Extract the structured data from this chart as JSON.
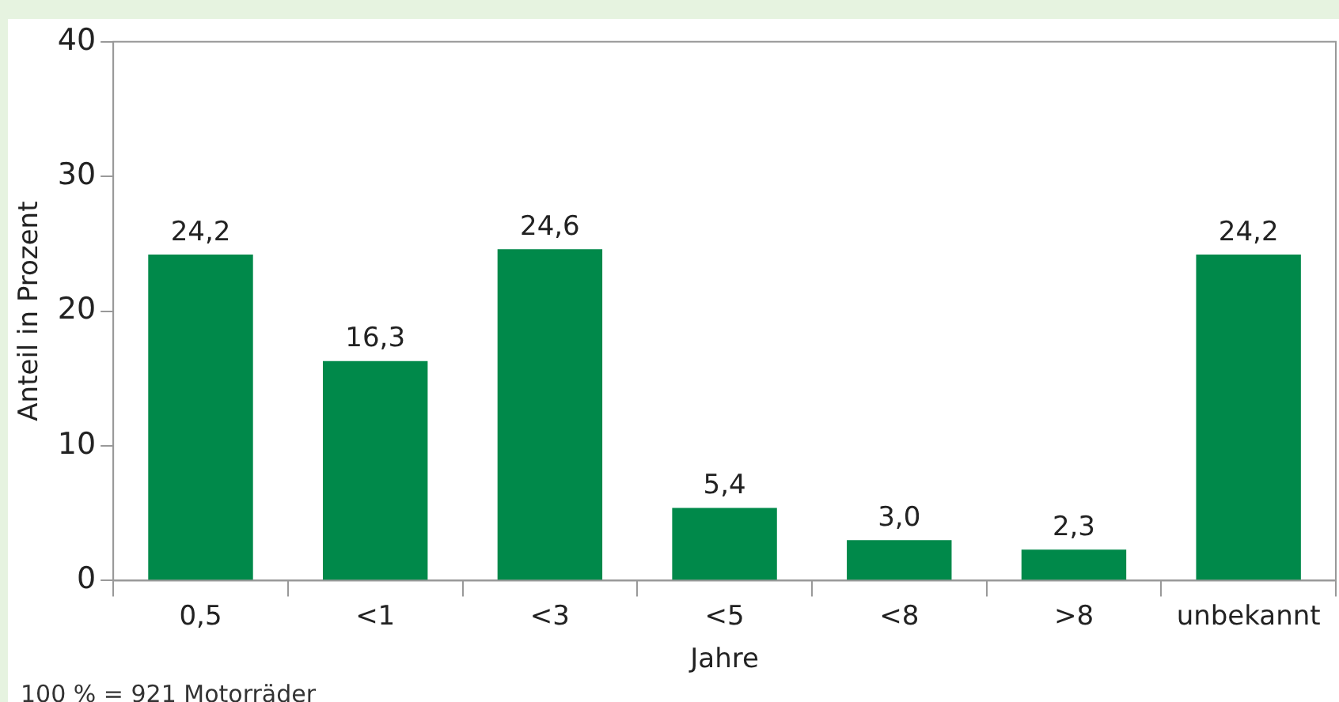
{
  "chart_data": {
    "type": "bar",
    "xlabel": "Jahre",
    "ylabel": "Anteil in Prozent",
    "categories": [
      "0,5",
      "<1",
      "<3",
      "<5",
      "<8",
      ">8",
      "unbekannt"
    ],
    "values": [
      24.2,
      16.3,
      24.6,
      5.4,
      3.0,
      2.3,
      24.2
    ],
    "value_labels": [
      "24,2",
      "16,3",
      "24,6",
      "5,4",
      "3,0",
      "2,3",
      "24,2"
    ],
    "color": "#00894a",
    "ylim": [
      0,
      40
    ],
    "yticks": [
      0,
      10,
      20,
      30,
      40
    ],
    "grid": false,
    "legend": false,
    "annotations": [
      "100 % = 921 Motorräder"
    ]
  }
}
